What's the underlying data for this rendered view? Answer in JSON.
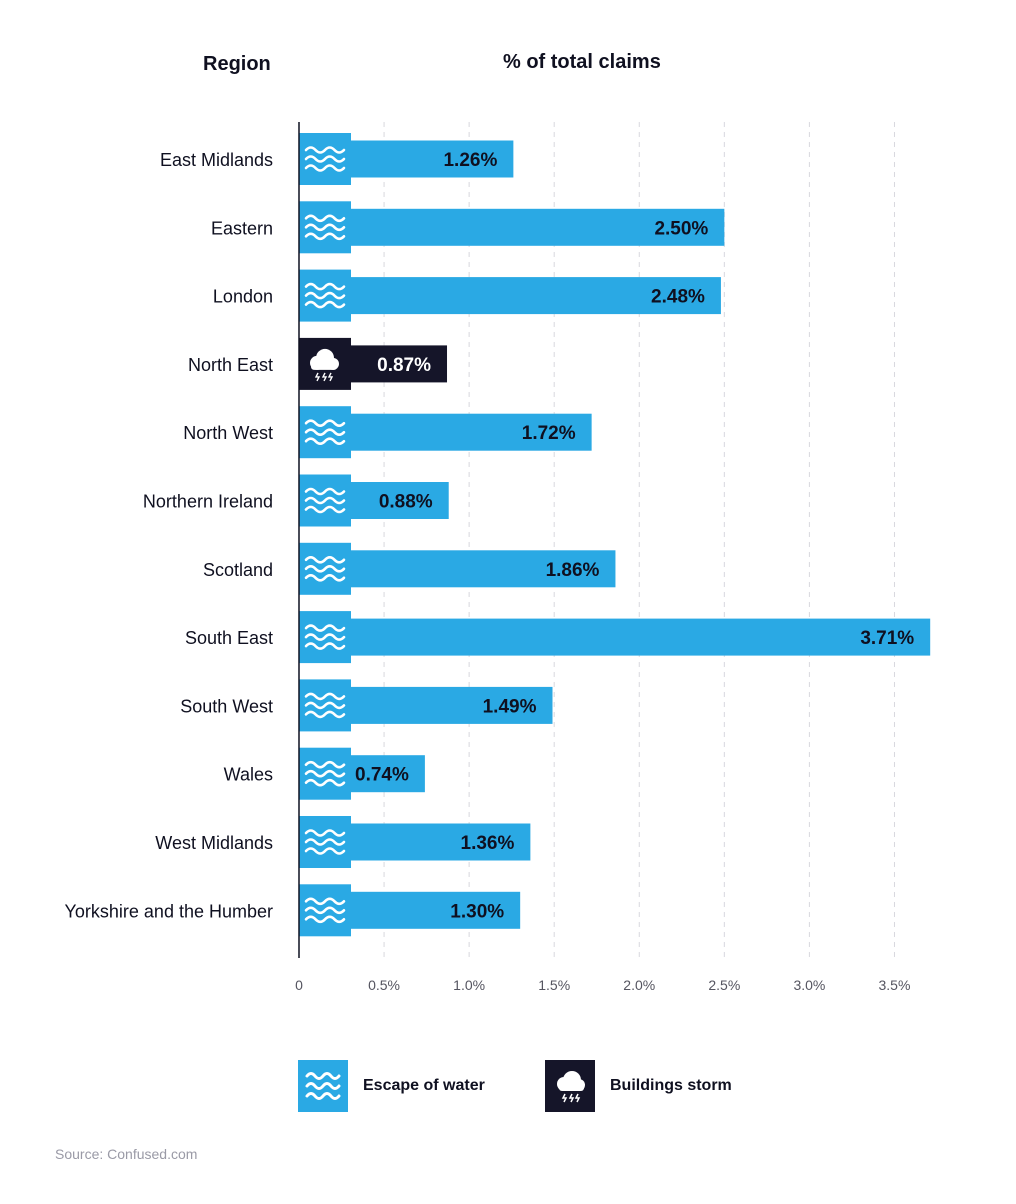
{
  "headers": {
    "region": "Region",
    "metric": "% of total claims"
  },
  "colors": {
    "water": "#2aa9e4",
    "storm": "#151529",
    "text": "#0f1020",
    "grid": "#d8d8de",
    "label_dark": "#0f1020",
    "label_light": "#ffffff"
  },
  "legend": [
    {
      "key": "water",
      "label": "Escape of water",
      "icon": "waves-icon"
    },
    {
      "key": "storm",
      "label": "Buildings storm",
      "icon": "storm-cloud-icon"
    }
  ],
  "source": "Source: Confused.com",
  "chart_data": {
    "type": "bar",
    "orientation": "horizontal",
    "xlabel": "% of total claims",
    "ylabel": "Region",
    "xlim": [
      0,
      3.75
    ],
    "grid": true,
    "legend_position": "bottom",
    "x_ticks": [
      {
        "value": 0,
        "label": "0"
      },
      {
        "value": 0.5,
        "label": "0.5%"
      },
      {
        "value": 1.0,
        "label": "1.0%"
      },
      {
        "value": 1.5,
        "label": "1.5%"
      },
      {
        "value": 2.0,
        "label": "2.0%"
      },
      {
        "value": 2.5,
        "label": "2.5%"
      },
      {
        "value": 3.0,
        "label": "3.0%"
      },
      {
        "value": 3.5,
        "label": "3.5%"
      }
    ],
    "bars": [
      {
        "region": "East Midlands",
        "value": 1.26,
        "label": "1.26%",
        "type": "water"
      },
      {
        "region": "Eastern",
        "value": 2.5,
        "label": "2.50%",
        "type": "water"
      },
      {
        "region": "London",
        "value": 2.48,
        "label": "2.48%",
        "type": "water"
      },
      {
        "region": "North East",
        "value": 0.87,
        "label": "0.87%",
        "type": "storm"
      },
      {
        "region": "North West",
        "value": 1.72,
        "label": "1.72%",
        "type": "water"
      },
      {
        "region": "Northern Ireland",
        "value": 0.88,
        "label": "0.88%",
        "type": "water"
      },
      {
        "region": "Scotland",
        "value": 1.86,
        "label": "1.86%",
        "type": "water"
      },
      {
        "region": "South East",
        "value": 3.71,
        "label": "3.71%",
        "type": "water"
      },
      {
        "region": "South West",
        "value": 1.49,
        "label": "1.49%",
        "type": "water"
      },
      {
        "region": "Wales",
        "value": 0.74,
        "label": "0.74%",
        "type": "water"
      },
      {
        "region": "West Midlands",
        "value": 1.36,
        "label": "1.36%",
        "type": "water"
      },
      {
        "region": "Yorkshire and the Humber",
        "value": 1.3,
        "label": "1.30%",
        "type": "water"
      }
    ]
  }
}
